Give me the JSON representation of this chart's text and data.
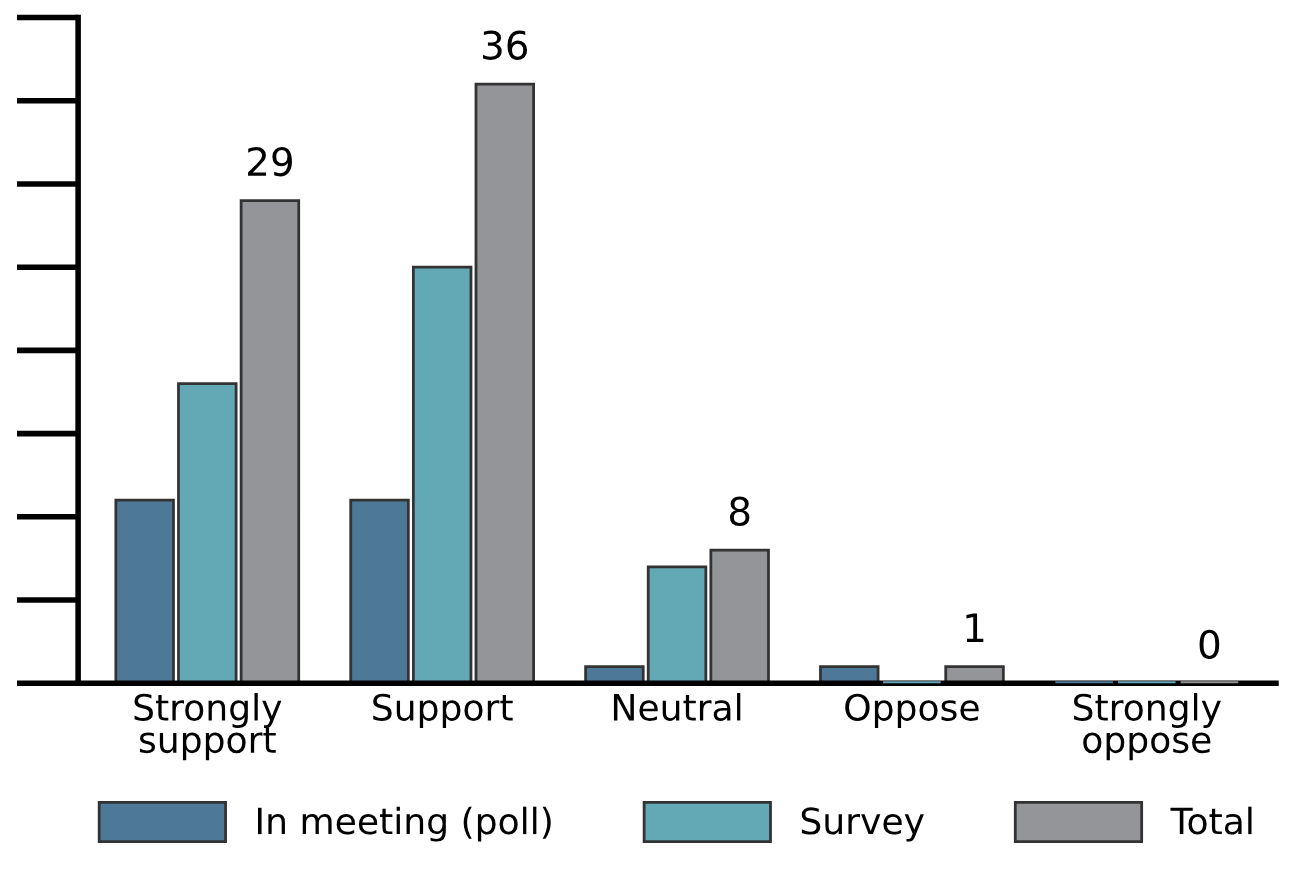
{
  "chart_data": {
    "type": "bar",
    "categories": [
      "Strongly\nsupport",
      "Support",
      "Neutral",
      "Oppose",
      "Strongly\noppose"
    ],
    "series": [
      {
        "name": "In meeting (poll)",
        "color": "#4e7898",
        "values": [
          11,
          11,
          1,
          1,
          0
        ]
      },
      {
        "name": "Survey",
        "color": "#62a8b5",
        "values": [
          18,
          25,
          7,
          0,
          0
        ]
      },
      {
        "name": "Total",
        "color": "#939598",
        "values": [
          29,
          36,
          8,
          1,
          0
        ],
        "value_labels": [
          "29",
          "36",
          "8",
          "1",
          "0"
        ]
      }
    ],
    "ylim": [
      0,
      40
    ],
    "tick_labels": "x",
    "grid": false,
    "legend": "bottom"
  }
}
